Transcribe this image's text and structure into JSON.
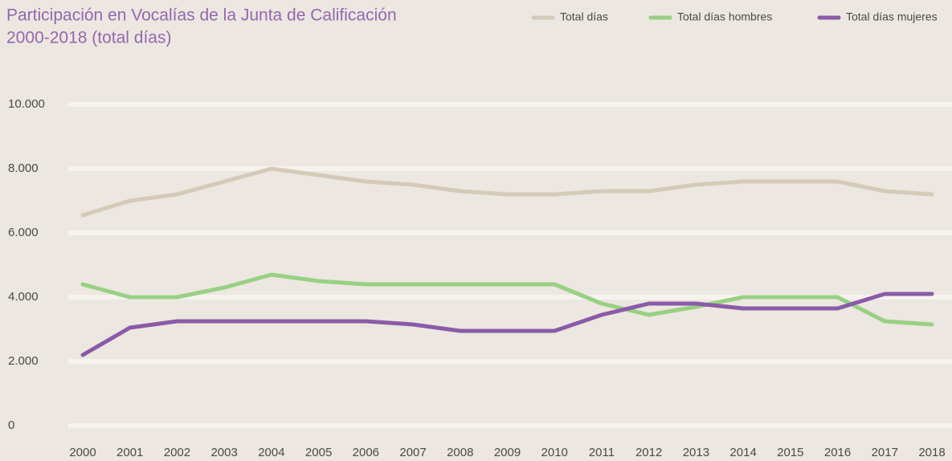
{
  "chart_data": {
    "type": "line",
    "title": [
      "Participación en Vocalías de la Junta de Calificación",
      "2000-2018 (total días)"
    ],
    "categories": [
      "2000",
      "2001",
      "2002",
      "2003",
      "2004",
      "2005",
      "2006",
      "2007",
      "2008",
      "2009",
      "2010",
      "2011",
      "2012",
      "2013",
      "2014",
      "2015",
      "2016",
      "2017",
      "2018"
    ],
    "series": [
      {
        "name": "Total días",
        "color": "#d4cab7",
        "values": [
          6550,
          7000,
          7200,
          7600,
          8000,
          7800,
          7600,
          7500,
          7300,
          7200,
          7200,
          7300,
          7300,
          7500,
          7600,
          7600,
          7600,
          7300,
          7200
        ]
      },
      {
        "name": "Total días hombres",
        "color": "#98d083",
        "values": [
          4400,
          4000,
          4000,
          4300,
          4700,
          4500,
          4400,
          4400,
          4400,
          4400,
          4400,
          3800,
          3450,
          3700,
          4000,
          4000,
          4000,
          3250,
          3150
        ]
      },
      {
        "name": "Total días mujeres",
        "color": "#8a5ba8",
        "values": [
          2200,
          3050,
          3250,
          3250,
          3250,
          3250,
          3250,
          3150,
          2950,
          2950,
          2950,
          3450,
          3800,
          3800,
          3650,
          3650,
          3650,
          4100,
          4100
        ]
      }
    ],
    "ylim": [
      0,
      10000
    ],
    "yticks": [
      0,
      {
        "value": 2000,
        "label": "2.000"
      },
      {
        "value": 4000,
        "label": "4.000"
      },
      {
        "value": 6000,
        "label": "6.000"
      },
      {
        "value": 8000,
        "label": "8.000"
      },
      {
        "value": 10000,
        "label": "10.000"
      }
    ],
    "grid": true,
    "legend": "top-right"
  }
}
